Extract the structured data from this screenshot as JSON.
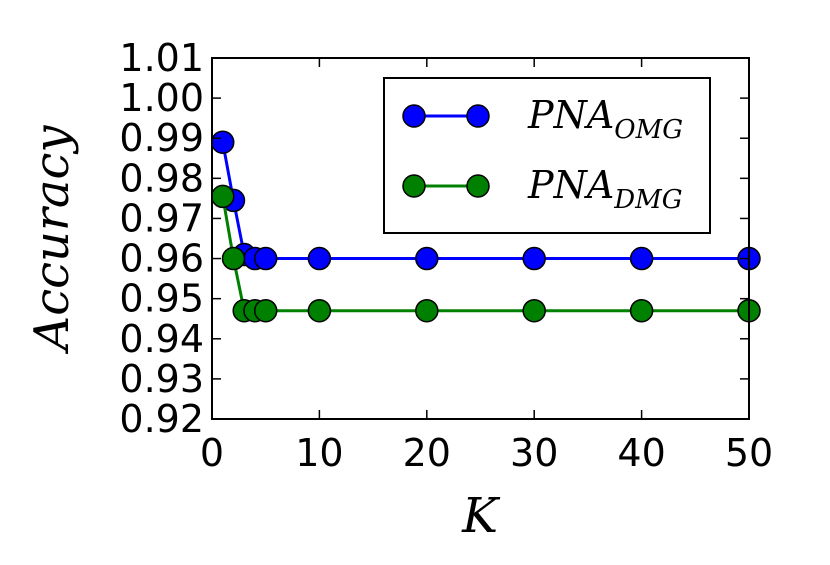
{
  "chart_data": {
    "type": "line",
    "xlabel": "K",
    "ylabel": "Accuracy",
    "xlim": [
      0,
      50
    ],
    "ylim": [
      0.92,
      1.01
    ],
    "xticks": [
      0,
      10,
      20,
      30,
      40,
      50
    ],
    "yticks": [
      0.92,
      0.93,
      0.94,
      0.95,
      0.96,
      0.97,
      0.98,
      0.99,
      1.0,
      1.01
    ],
    "xtick_labels": [
      "0",
      "10",
      "20",
      "30",
      "40",
      "50"
    ],
    "ytick_labels": [
      "0.92",
      "0.93",
      "0.94",
      "0.95",
      "0.96",
      "0.97",
      "0.98",
      "0.99",
      "1.00",
      "1.01"
    ],
    "legend_position": "top-right",
    "grid": false,
    "series": [
      {
        "name_main": "PNA",
        "name_sub": "OMG",
        "color": "#0000ff",
        "x": [
          1,
          2,
          3,
          4,
          5,
          10,
          20,
          30,
          40,
          50
        ],
        "y": [
          0.989,
          0.9745,
          0.961,
          0.96,
          0.96,
          0.96,
          0.96,
          0.96,
          0.96,
          0.96
        ]
      },
      {
        "name_main": "PNA",
        "name_sub": "DMG",
        "color": "#008000",
        "x": [
          1,
          2,
          3,
          4,
          5,
          10,
          20,
          30,
          40,
          50
        ],
        "y": [
          0.9755,
          0.96,
          0.947,
          0.947,
          0.947,
          0.947,
          0.947,
          0.947,
          0.947,
          0.947
        ]
      }
    ]
  }
}
